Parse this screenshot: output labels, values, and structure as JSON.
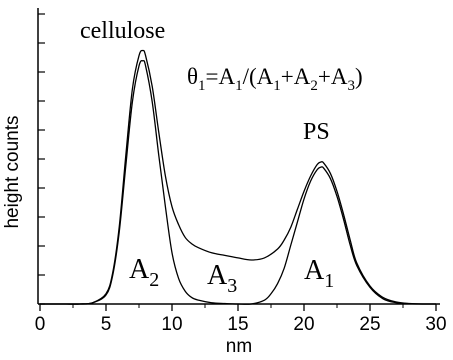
{
  "chart_data": {
    "type": "line",
    "xlabel": "nm",
    "ylabel": "height counts",
    "xlim": [
      0,
      30
    ],
    "ylim": [
      0,
      1.0
    ],
    "x_ticks": [
      0,
      5,
      10,
      15,
      20,
      25,
      30
    ],
    "y_ticks_count": 11,
    "y_tick_labels_shown": false,
    "grid": false,
    "series": [
      {
        "x": [
          0,
          1,
          2,
          3,
          4,
          5,
          5.5,
          6,
          6.5,
          7,
          7.5,
          7.8,
          8,
          8.5,
          9,
          9.5,
          10,
          10.5,
          11,
          11.5,
          12,
          13,
          14,
          15,
          16,
          17,
          18,
          18.5,
          19,
          19.5,
          20,
          20.5,
          21,
          21.3,
          21.5,
          22,
          22.5,
          23,
          23.5,
          24,
          25,
          26,
          27,
          28,
          29,
          30
        ],
        "y": [
          0,
          0,
          0,
          0,
          0.005,
          0.04,
          0.12,
          0.3,
          0.58,
          0.84,
          0.97,
          0.99,
          0.97,
          0.85,
          0.67,
          0.5,
          0.38,
          0.31,
          0.26,
          0.235,
          0.22,
          0.2,
          0.19,
          0.18,
          0.172,
          0.18,
          0.215,
          0.25,
          0.3,
          0.37,
          0.44,
          0.5,
          0.545,
          0.555,
          0.55,
          0.51,
          0.44,
          0.35,
          0.25,
          0.16,
          0.07,
          0.025,
          0.008,
          0.002,
          0.0,
          0.0
        ]
      },
      {
        "x": [
          0,
          1,
          2,
          3,
          4,
          5,
          5.5,
          6,
          6.5,
          7,
          7.5,
          7.8,
          8,
          8.5,
          9,
          9.5,
          10,
          10.5,
          11,
          11.5,
          12,
          13,
          14,
          15,
          16,
          17,
          17.5,
          18,
          18.5,
          19,
          19.5,
          20,
          20.5,
          21,
          21.3,
          21.5,
          22,
          22.5,
          23,
          23.5,
          24,
          25,
          26,
          27,
          28,
          29,
          30
        ],
        "y": [
          0,
          0,
          0,
          0,
          0.005,
          0.035,
          0.11,
          0.28,
          0.54,
          0.79,
          0.93,
          0.95,
          0.93,
          0.79,
          0.58,
          0.38,
          0.2,
          0.1,
          0.05,
          0.025,
          0.015,
          0.005,
          0.002,
          0.0,
          0.0,
          0.015,
          0.04,
          0.08,
          0.14,
          0.23,
          0.32,
          0.41,
          0.48,
          0.525,
          0.535,
          0.53,
          0.49,
          0.42,
          0.33,
          0.23,
          0.15,
          0.065,
          0.02,
          0.005,
          0.001,
          0.0,
          0.0
        ]
      }
    ],
    "annotations": {
      "cellulose": "cellulose",
      "formula": "θ1=A1/(A1+A2+A3)",
      "ps": "PS",
      "a2": "A2",
      "a3": "A3",
      "a1": "A1"
    }
  }
}
